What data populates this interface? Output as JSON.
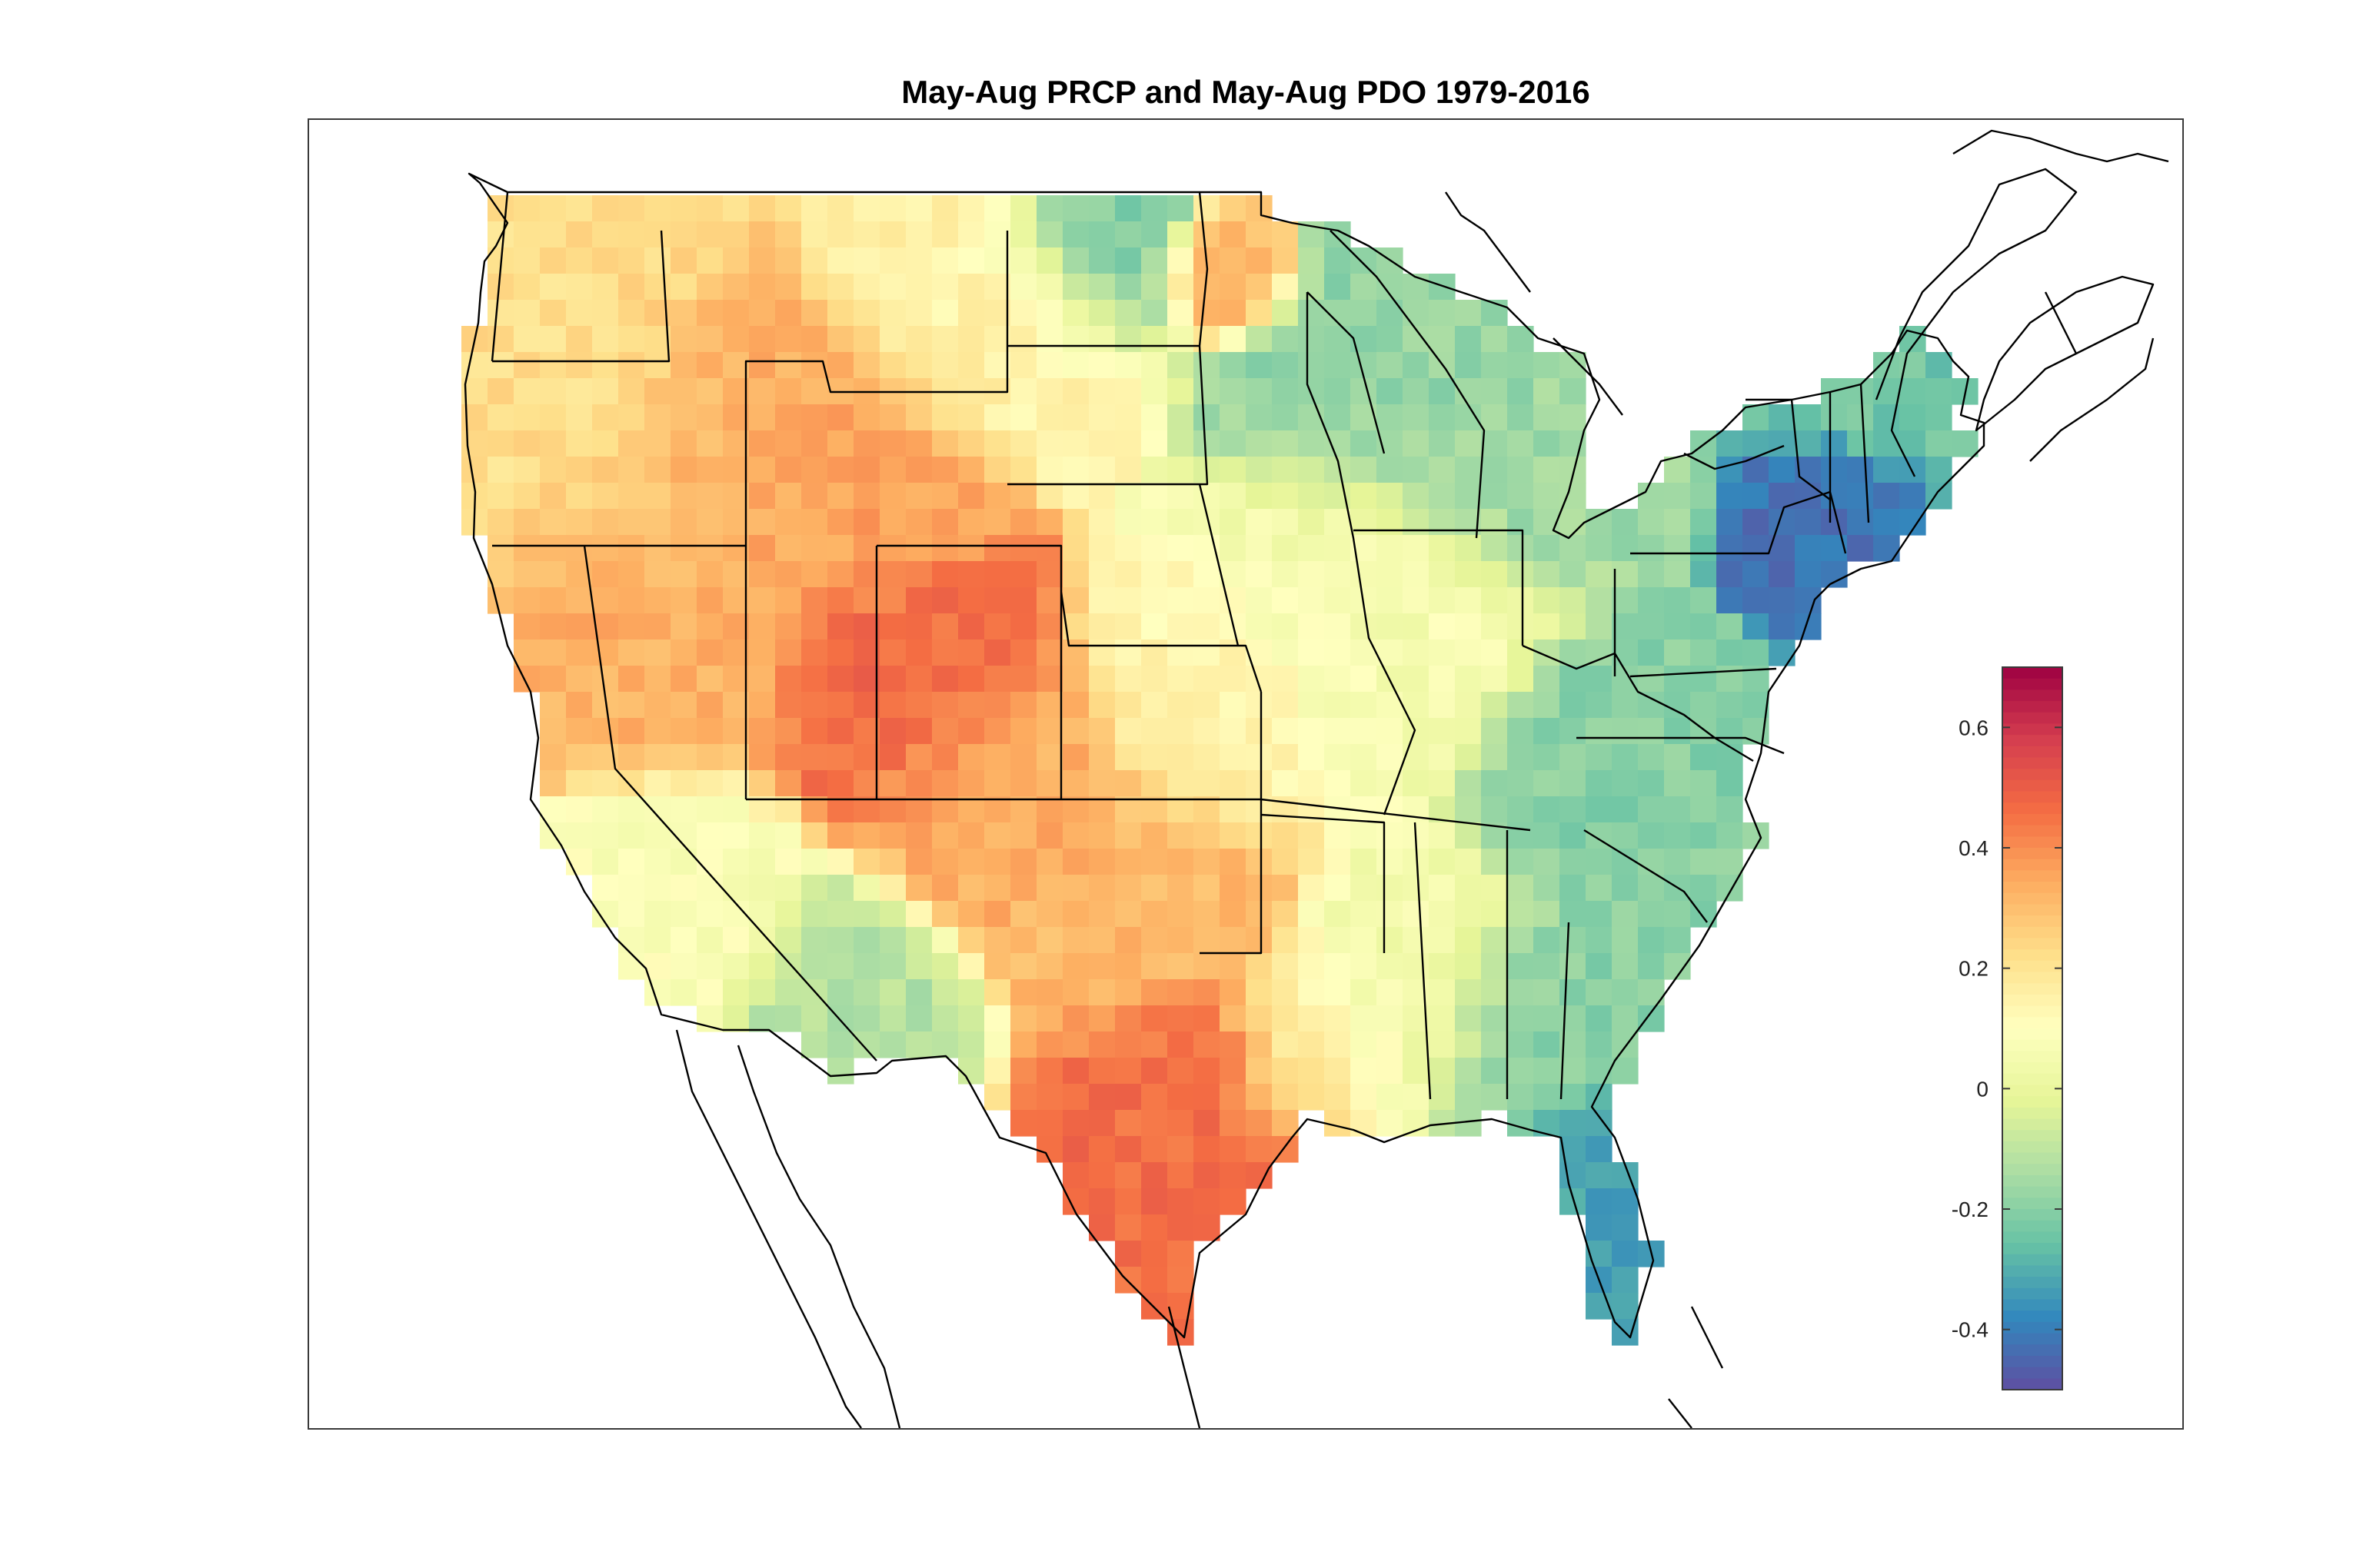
{
  "title": "May-Aug PRCP and May-Aug PDO 1979-2016",
  "chart_data": {
    "type": "heatmap",
    "title": "May-Aug PRCP and May-Aug PDO 1979-2016",
    "xlabel": "",
    "ylabel": "",
    "color_range": [
      -0.5,
      0.7
    ],
    "colormap": [
      "#5e4fa2",
      "#3288bd",
      "#66c2a5",
      "#abdda4",
      "#e6f598",
      "#ffffbf",
      "#fee08b",
      "#fdae61",
      "#f46d43",
      "#d53e4f",
      "#9e0142"
    ],
    "colorbar": {
      "ticks": [
        -0.4,
        -0.2,
        0,
        0.2,
        0.4,
        0.6
      ],
      "tick_labels": [
        "-0.4",
        "-0.2",
        "0",
        "0.2",
        "0.4",
        "0.6"
      ],
      "placement": "right-inside"
    },
    "extent": {
      "lon": [
        -125,
        -67
      ],
      "lat": [
        24.5,
        49.5
      ]
    },
    "regions": [
      {
        "lon": -121,
        "lat": 45.5,
        "value": 0.22,
        "spread": 3.2
      },
      {
        "lon": -114,
        "lat": 44.5,
        "value": 0.34,
        "spread": 2.4
      },
      {
        "lon": -117.5,
        "lat": 40,
        "value": 0.33,
        "spread": 2.5
      },
      {
        "lon": -108,
        "lat": 38.5,
        "value": 0.47,
        "spread": 2.0
      },
      {
        "lon": -110.5,
        "lat": 42.5,
        "value": 0.36,
        "spread": 2.0
      },
      {
        "lon": -104,
        "lat": 36,
        "value": 0.34,
        "spread": 2.3
      },
      {
        "lon": -97,
        "lat": 30,
        "value": 0.46,
        "spread": 2.0
      },
      {
        "lon": -98.5,
        "lat": 34,
        "value": 0.31,
        "spread": 2.3
      },
      {
        "lon": -105.5,
        "lat": 47.5,
        "value": 0.15,
        "spread": 2.5
      },
      {
        "lon": -101,
        "lat": 48.5,
        "value": -0.24,
        "spread": 1.8
      },
      {
        "lon": -95.5,
        "lat": 47.5,
        "value": 0.32,
        "spread": 1.0
      },
      {
        "lon": -88,
        "lat": 45,
        "value": -0.18,
        "spread": 2.5
      },
      {
        "lon": -84.5,
        "lat": 43.5,
        "value": -0.16,
        "spread": 2.0
      },
      {
        "lon": -90,
        "lat": 40,
        "value": 0.06,
        "spread": 2.5
      },
      {
        "lon": -81,
        "lat": 36.5,
        "value": -0.2,
        "spread": 2.0
      },
      {
        "lon": -72,
        "lat": 42,
        "value": -0.42,
        "spread": 1.3
      },
      {
        "lon": -70,
        "lat": 45.5,
        "value": -0.24,
        "spread": 1.8
      },
      {
        "lon": -81.5,
        "lat": 28,
        "value": -0.32,
        "spread": 1.6
      },
      {
        "lon": -83.5,
        "lat": 31.5,
        "value": -0.2,
        "spread": 1.8
      },
      {
        "lon": -88.5,
        "lat": 32.5,
        "value": 0.05,
        "spread": 2.0
      },
      {
        "lon": -110,
        "lat": 32,
        "value": -0.12,
        "spread": 1.8
      },
      {
        "lon": -117,
        "lat": 34,
        "value": 0.08,
        "spread": 2.0
      },
      {
        "lon": -92.5,
        "lat": 31,
        "value": 0.16,
        "spread": 1.5
      },
      {
        "lon": -96,
        "lat": 38,
        "value": 0.14,
        "spread": 2.0
      }
    ]
  }
}
